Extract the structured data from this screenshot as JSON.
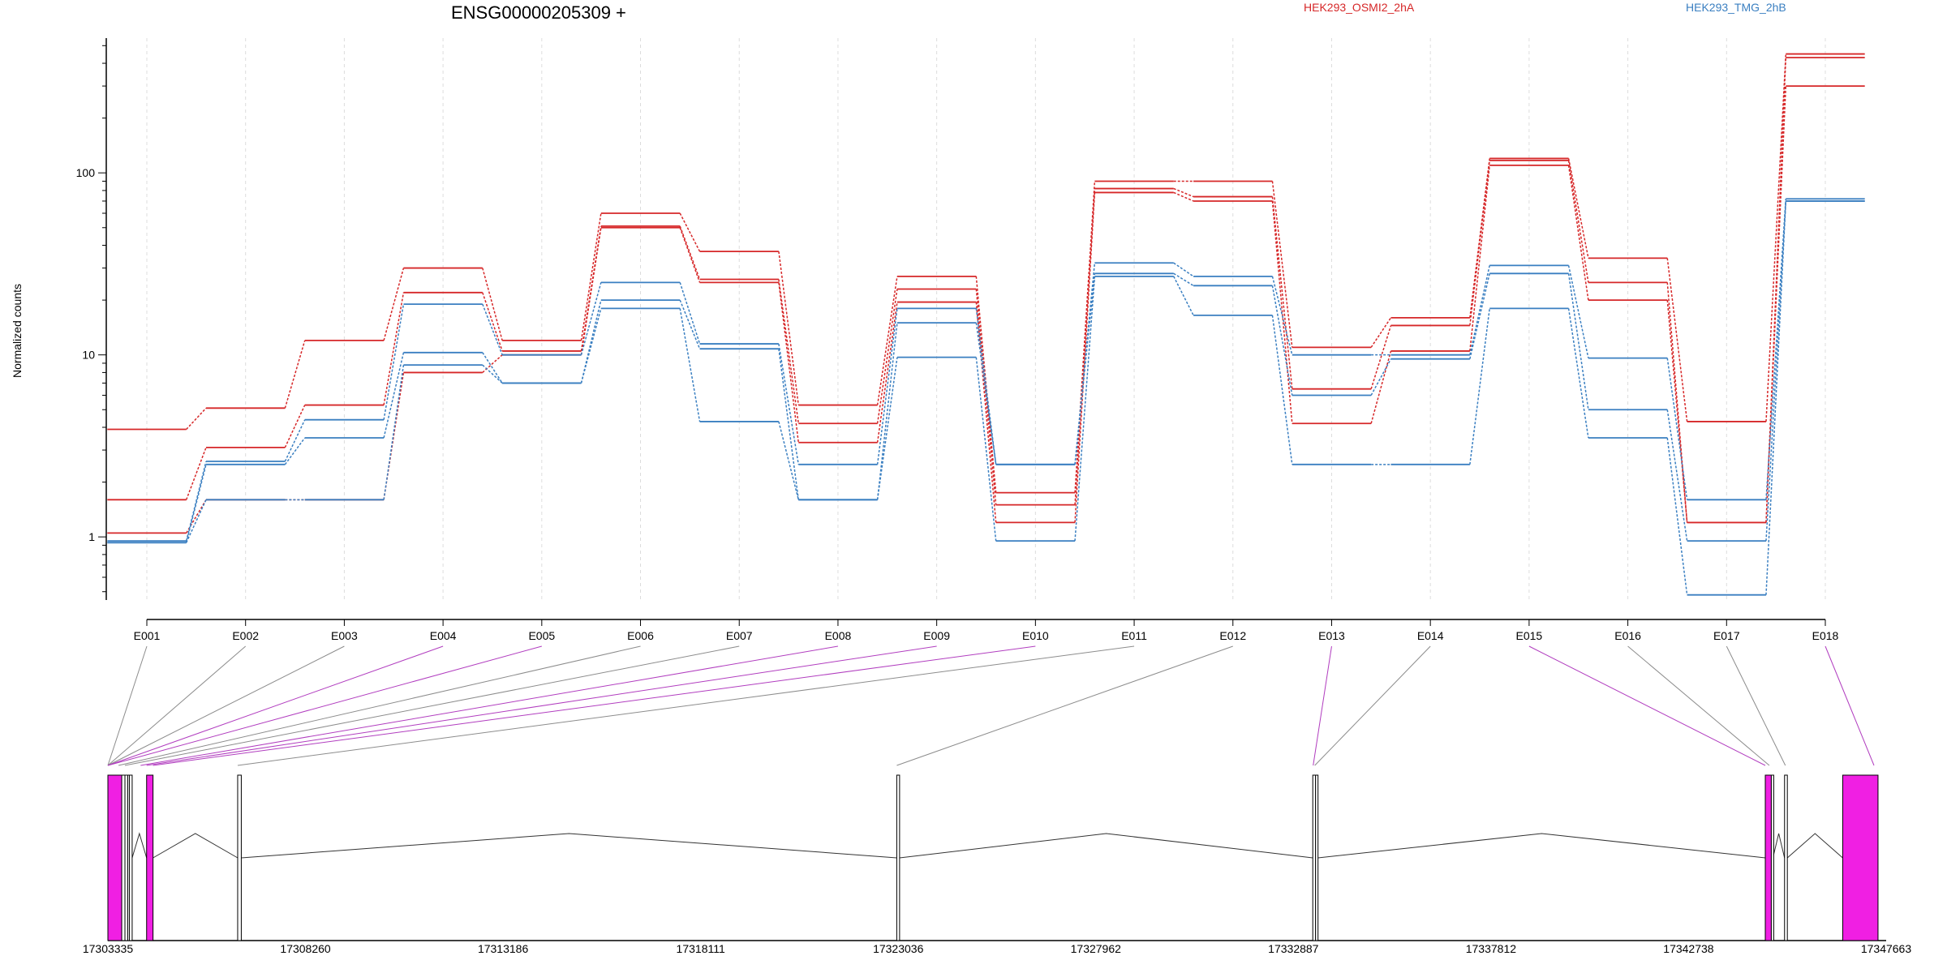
{
  "chart_data": {
    "type": "line",
    "title": "ENSG00000205309 +",
    "ylabel": "Normalized counts",
    "yscale": "log",
    "ylim": [
      0.45,
      550
    ],
    "y_ticks": [
      {
        "value": 1,
        "label": "1"
      },
      {
        "value": 10,
        "label": "10"
      },
      {
        "value": 100,
        "label": "100"
      }
    ],
    "categories": [
      "E001",
      "E002",
      "E003",
      "E004",
      "E005",
      "E006",
      "E007",
      "E008",
      "E009",
      "E010",
      "E011",
      "E012",
      "E013",
      "E014",
      "E015",
      "E016",
      "E017",
      "E018"
    ],
    "legend": [
      {
        "label": "HEK293_OSMI2_2hA",
        "color": "#d62728"
      },
      {
        "label": "HEK293_TMG_2hB",
        "color": "#3a7fc1"
      }
    ],
    "series": [
      {
        "group": "HEK293_OSMI2_2hA",
        "color": "#d62728",
        "values": [
          3.9,
          5.1,
          12.0,
          30.0,
          12.0,
          60.0,
          37.0,
          5.3,
          27.0,
          1.75,
          90.0,
          90.0,
          11.0,
          16.0,
          120.0,
          34.0,
          4.3,
          450.0
        ]
      },
      {
        "group": "HEK293_OSMI2_2hA",
        "color": "#d62728",
        "values": [
          1.6,
          3.1,
          5.3,
          22.0,
          10.5,
          51.0,
          26.0,
          4.2,
          23.0,
          1.5,
          82.0,
          74.0,
          6.5,
          14.5,
          117.0,
          25.0,
          1.2,
          430.0
        ]
      },
      {
        "group": "HEK293_OSMI2_2hA",
        "color": "#d62728",
        "values": [
          1.05,
          1.6,
          1.6,
          8.0,
          10.0,
          50.0,
          25.0,
          3.3,
          19.5,
          1.2,
          78.0,
          70.0,
          4.2,
          10.5,
          110.0,
          20.0,
          1.2,
          300.0
        ]
      },
      {
        "group": "HEK293_TMG_2hB",
        "color": "#3a7fc1",
        "values": [
          0.95,
          2.6,
          4.4,
          19.0,
          10.0,
          25.0,
          11.5,
          2.5,
          18.0,
          2.5,
          32.0,
          27.0,
          10.0,
          10.0,
          31.0,
          9.6,
          1.6,
          72.0
        ]
      },
      {
        "group": "HEK293_TMG_2hB",
        "color": "#3a7fc1",
        "values": [
          0.93,
          2.5,
          3.5,
          10.3,
          7.0,
          20.0,
          10.8,
          1.6,
          15.0,
          2.5,
          28.0,
          24.0,
          6.0,
          9.5,
          28.0,
          5.0,
          0.95,
          70.0
        ]
      },
      {
        "group": "HEK293_TMG_2hB",
        "color": "#3a7fc1",
        "values": [
          0.93,
          1.6,
          1.6,
          8.8,
          7.0,
          18.0,
          4.3,
          1.6,
          9.7,
          0.95,
          27.0,
          16.5,
          2.5,
          2.5,
          18.0,
          3.5,
          0.48,
          70.0
        ]
      }
    ],
    "gene_model": {
      "start": 17303335,
      "end": 17347663,
      "coordinate_ticks": [
        "17303335",
        "17308260",
        "17313186",
        "17318111",
        "17323036",
        "17327962",
        "17332887",
        "17337812",
        "17342738",
        "17347663"
      ],
      "exons": [
        {
          "start": 17303335,
          "end": 17303680,
          "highlight": true
        },
        {
          "start": 17303680,
          "end": 17303760,
          "highlight": false
        },
        {
          "start": 17303760,
          "end": 17303830,
          "highlight": false
        },
        {
          "start": 17303830,
          "end": 17303900,
          "highlight": false
        },
        {
          "start": 17303870,
          "end": 17303940,
          "highlight": false
        },
        {
          "start": 17304300,
          "end": 17304460,
          "highlight": true
        },
        {
          "start": 17306570,
          "end": 17306660,
          "highlight": false
        },
        {
          "start": 17323000,
          "end": 17323070,
          "highlight": false
        },
        {
          "start": 17333370,
          "end": 17333440,
          "highlight": false
        },
        {
          "start": 17333440,
          "end": 17333500,
          "highlight": false
        },
        {
          "start": 17344650,
          "end": 17344800,
          "highlight": true
        },
        {
          "start": 17344800,
          "end": 17344840,
          "highlight": false
        },
        {
          "start": 17345130,
          "end": 17345200,
          "highlight": false
        },
        {
          "start": 17346580,
          "end": 17347460,
          "highlight": true
        }
      ],
      "bin_links": [
        {
          "bin": "E001",
          "pos": 17303335,
          "highlight": false
        },
        {
          "bin": "E002",
          "pos": 17303335,
          "highlight": false
        },
        {
          "bin": "E003",
          "pos": 17303335,
          "highlight": false
        },
        {
          "bin": "E004",
          "pos": 17303335,
          "highlight": true
        },
        {
          "bin": "E005",
          "pos": 17303335,
          "highlight": true
        },
        {
          "bin": "E006",
          "pos": 17303600,
          "highlight": false
        },
        {
          "bin": "E007",
          "pos": 17303760,
          "highlight": false
        },
        {
          "bin": "E008",
          "pos": 17304150,
          "highlight": true
        },
        {
          "bin": "E009",
          "pos": 17304300,
          "highlight": true
        },
        {
          "bin": "E010",
          "pos": 17304460,
          "highlight": true
        },
        {
          "bin": "E011",
          "pos": 17306570,
          "highlight": false
        },
        {
          "bin": "E012",
          "pos": 17323000,
          "highlight": false
        },
        {
          "bin": "E013",
          "pos": 17333380,
          "highlight": true
        },
        {
          "bin": "E014",
          "pos": 17333420,
          "highlight": false
        },
        {
          "bin": "E015",
          "pos": 17344650,
          "highlight": true
        },
        {
          "bin": "E016",
          "pos": 17344750,
          "highlight": false
        },
        {
          "bin": "E017",
          "pos": 17345150,
          "highlight": false
        },
        {
          "bin": "E018",
          "pos": 17347360,
          "highlight": true
        }
      ]
    }
  }
}
